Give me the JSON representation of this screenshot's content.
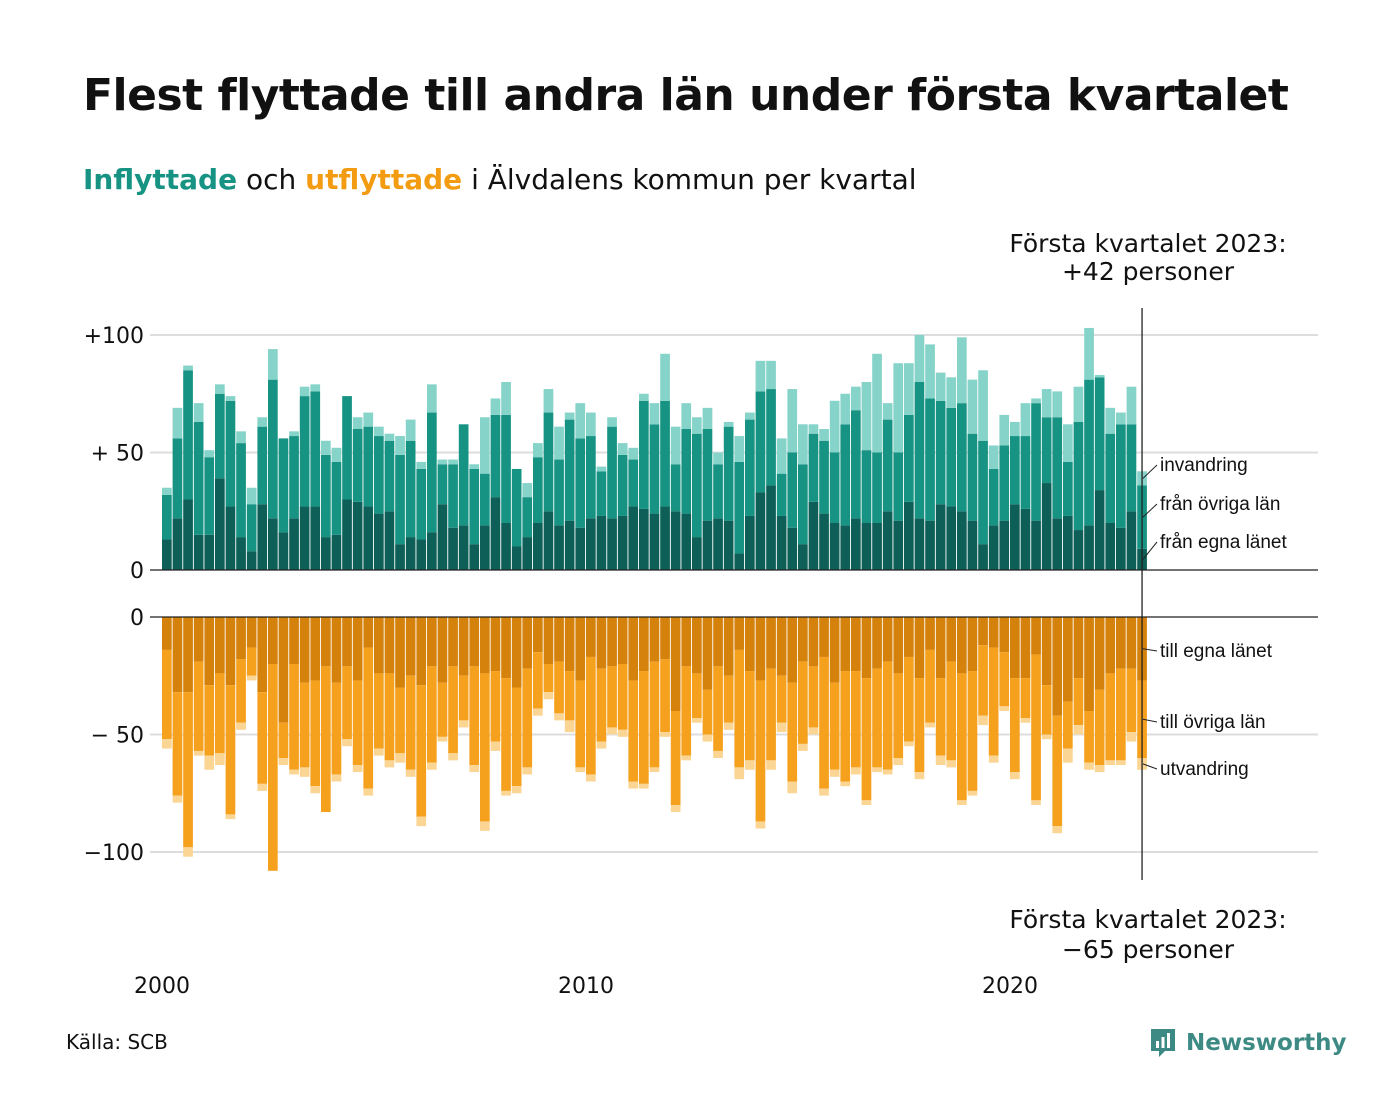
{
  "title": "Flest flyttade till andra län under första kvartalet",
  "subtitle": {
    "in_word": "Inflyttade",
    "and_word": " och ",
    "out_word": "utflyttade",
    "rest": " i Älvdalens kommun per kvartal"
  },
  "source": "Källa: SCB",
  "brand": "Newsworthy",
  "colors": {
    "in_local": "#0d5f57",
    "in_other": "#179384",
    "in_immigration": "#86d3c9",
    "out_local": "#d4820b",
    "out_other": "#f5a11d",
    "out_emigration": "#fbd594",
    "grid": "#dddddd",
    "brand": "#3d8a84"
  },
  "chart_data": {
    "type": "bar",
    "stacked": true,
    "x_start": "2000 Q1",
    "x_end": "2023 Q1",
    "x_ticks": [
      "2000",
      "2010",
      "2020"
    ],
    "y_ticks_top": [
      "+100",
      "+ 50",
      "0"
    ],
    "y_ticks_bottom": [
      "0",
      "− 50",
      "−100"
    ],
    "ylim_top": [
      0,
      100
    ],
    "ylim_bottom": [
      -100,
      0
    ],
    "annotation_top": [
      "Första kvartalet 2023:",
      "+42 personer"
    ],
    "annotation_bottom": [
      "Första kvartalet 2023:",
      "−65 personer"
    ],
    "series_top": [
      {
        "name": "från egna länet",
        "values": [
          13,
          22,
          30,
          15,
          15,
          39,
          27,
          14,
          8,
          28,
          22,
          16,
          22,
          27,
          27,
          14,
          15,
          30,
          29,
          27,
          24,
          25,
          11,
          14,
          13,
          16,
          28,
          18,
          19,
          11,
          19,
          31,
          20,
          10,
          14,
          20,
          25,
          19,
          21,
          18,
          22,
          23,
          22,
          23,
          27,
          26,
          24,
          27,
          25,
          24,
          14,
          21,
          22,
          21,
          7,
          23,
          33,
          36,
          23,
          18,
          11,
          29,
          24,
          20,
          19,
          22,
          20,
          20,
          25,
          21,
          29,
          22,
          21,
          28,
          27,
          25,
          21,
          11,
          19,
          21,
          28,
          26,
          21,
          37,
          22,
          23,
          17,
          19,
          34,
          20,
          18,
          25,
          9
        ]
      },
      {
        "name": "från övriga län",
        "values": [
          19,
          34,
          55,
          48,
          33,
          36,
          45,
          40,
          20,
          33,
          59,
          40,
          35,
          47,
          49,
          35,
          31,
          44,
          31,
          34,
          33,
          30,
          38,
          41,
          30,
          51,
          17,
          27,
          43,
          32,
          22,
          35,
          46,
          33,
          17,
          28,
          42,
          28,
          43,
          38,
          35,
          19,
          39,
          26,
          20,
          46,
          38,
          45,
          20,
          36,
          44,
          39,
          23,
          40,
          39,
          41,
          43,
          41,
          18,
          32,
          34,
          29,
          31,
          30,
          43,
          46,
          31,
          30,
          39,
          29,
          37,
          58,
          52,
          44,
          42,
          46,
          37,
          44,
          24,
          32,
          29,
          31,
          50,
          28,
          43,
          23,
          46,
          62,
          48,
          38,
          44,
          37,
          27
        ]
      },
      {
        "name": "invandring",
        "values": [
          3,
          13,
          2,
          8,
          3,
          4,
          2,
          5,
          7,
          4,
          13,
          0,
          2,
          4,
          3,
          6,
          6,
          0,
          5,
          6,
          4,
          3,
          8,
          9,
          3,
          12,
          2,
          2,
          0,
          2,
          24,
          7,
          14,
          0,
          6,
          6,
          10,
          14,
          3,
          15,
          10,
          2,
          4,
          5,
          5,
          3,
          9,
          20,
          16,
          11,
          7,
          9,
          5,
          2,
          11,
          3,
          13,
          12,
          15,
          27,
          17,
          4,
          5,
          22,
          13,
          10,
          29,
          42,
          7,
          38,
          22,
          20,
          23,
          12,
          13,
          28,
          23,
          30,
          10,
          13,
          6,
          14,
          2,
          12,
          11,
          16,
          15,
          22,
          1,
          11,
          5,
          16,
          6
        ]
      }
    ],
    "series_bottom": [
      {
        "name": "till egna länet",
        "values": [
          14,
          32,
          32,
          19,
          29,
          24,
          29,
          18,
          13,
          32,
          20,
          45,
          20,
          28,
          27,
          21,
          28,
          21,
          27,
          13,
          24,
          24,
          30,
          25,
          29,
          21,
          28,
          21,
          25,
          21,
          24,
          23,
          26,
          30,
          22,
          15,
          20,
          19,
          23,
          27,
          17,
          22,
          21,
          20,
          27,
          23,
          19,
          18,
          40,
          21,
          24,
          31,
          21,
          25,
          14,
          23,
          27,
          22,
          25,
          28,
          19,
          21,
          17,
          28,
          23,
          23,
          26,
          22,
          19,
          24,
          17,
          26,
          14,
          26,
          19,
          24,
          23,
          12,
          13,
          15,
          26,
          26,
          16,
          29,
          42,
          36,
          26,
          40,
          31,
          24,
          22,
          22,
          27
        ]
      },
      {
        "name": "till övriga län",
        "values": [
          38,
          44,
          66,
          38,
          30,
          34,
          55,
          27,
          12,
          39,
          88,
          15,
          45,
          36,
          45,
          62,
          39,
          31,
          36,
          60,
          32,
          37,
          28,
          40,
          56,
          41,
          23,
          37,
          19,
          42,
          63,
          30,
          48,
          42,
          42,
          24,
          12,
          22,
          21,
          37,
          50,
          31,
          26,
          28,
          43,
          48,
          45,
          31,
          40,
          38,
          19,
          19,
          36,
          20,
          50,
          38,
          60,
          39,
          20,
          42,
          35,
          26,
          56,
          37,
          47,
          41,
          52,
          42,
          46,
          36,
          36,
          40,
          31,
          33,
          42,
          54,
          51,
          30,
          46,
          23,
          40,
          17,
          62,
          21,
          47,
          20,
          20,
          22,
          32,
          37,
          39,
          27,
          33
        ]
      },
      {
        "name": "utvandring",
        "values": [
          4,
          3,
          4,
          2,
          6,
          5,
          2,
          3,
          2,
          3,
          0,
          3,
          2,
          4,
          3,
          0,
          3,
          3,
          3,
          3,
          3,
          3,
          4,
          3,
          4,
          3,
          2,
          3,
          3,
          3,
          4,
          4,
          2,
          3,
          3,
          3,
          3,
          3,
          5,
          2,
          3,
          3,
          3,
          3,
          3,
          2,
          2,
          2,
          3,
          2,
          2,
          3,
          3,
          3,
          5,
          4,
          3,
          4,
          4,
          5,
          3,
          3,
          3,
          3,
          2,
          3,
          2,
          2,
          2,
          3,
          2,
          3,
          2,
          4,
          3,
          2,
          2,
          4,
          3,
          2,
          3,
          2,
          2,
          2,
          3,
          6,
          4,
          3,
          3,
          2,
          2,
          4,
          5
        ]
      }
    ]
  }
}
